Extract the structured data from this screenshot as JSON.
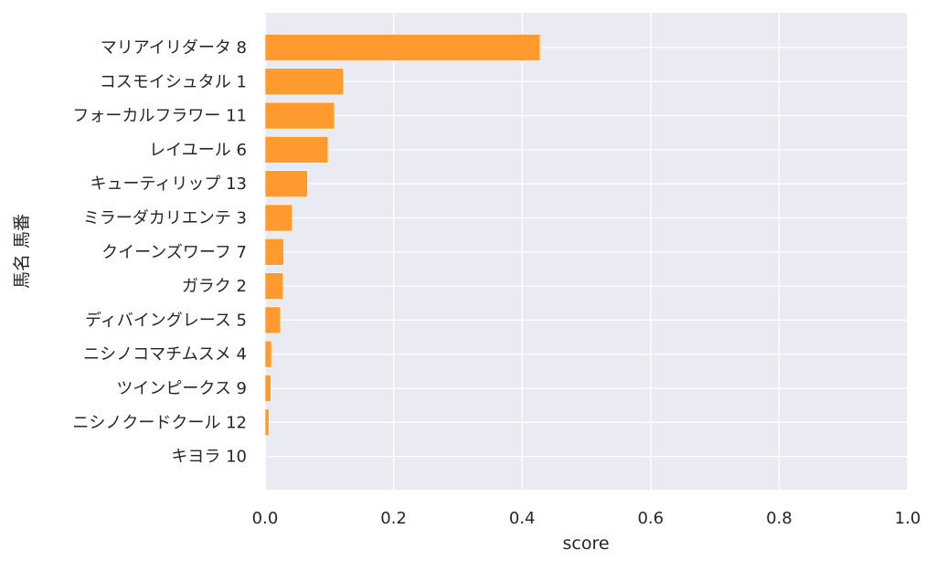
{
  "chart_data": {
    "type": "bar",
    "orientation": "horizontal",
    "categories": [
      "マリアイリダータ 8",
      "コスモイシュタル 1",
      "フォーカルフラワー 11",
      "レイユール 6",
      "キューティリップ 13",
      "ミラーダカリエンテ 3",
      "クイーンズワーフ 7",
      "ガラク 2",
      "ディバイングレース 5",
      "ニシノコマチムスメ 4",
      "ツインピークス 9",
      "ニシノクードクール 12",
      "キヨラ 10"
    ],
    "values": [
      0.428,
      0.122,
      0.108,
      0.098,
      0.066,
      0.042,
      0.029,
      0.028,
      0.024,
      0.01,
      0.009,
      0.006,
      0.0
    ],
    "xlabel": "score",
    "ylabel": "馬名 馬番",
    "xlim": [
      0,
      1.0
    ],
    "xticks": [
      "0.0",
      "0.2",
      "0.4",
      "0.6",
      "0.8",
      "1.0"
    ],
    "grid": true,
    "bar_color": "#ff9a2e",
    "background_color": "#eaeaf2"
  }
}
